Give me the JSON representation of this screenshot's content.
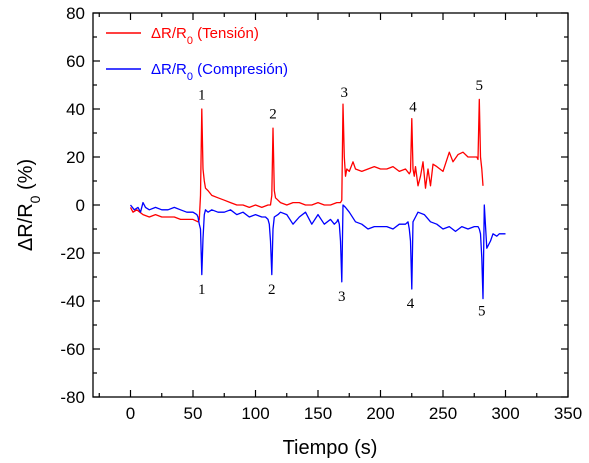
{
  "chart_data": {
    "type": "line",
    "title": "",
    "xlabel": "Tiempo (s)",
    "ylabel": {
      "main": "ΔR/R",
      "sub": "0",
      "unit": " (%)"
    },
    "xlim": [
      -30,
      350
    ],
    "ylim": [
      -80,
      80
    ],
    "xticks": [
      0,
      50,
      100,
      150,
      200,
      250,
      300,
      350
    ],
    "yticks": [
      -80,
      -60,
      -40,
      -20,
      0,
      20,
      40,
      60,
      80
    ],
    "grid": false,
    "legend_position": "top-left",
    "series": [
      {
        "name": {
          "main": "ΔR/R",
          "sub": "0",
          "suffix": " (Tensión)"
        },
        "color": "#ff0000",
        "x": [
          0,
          2,
          5,
          10,
          15,
          20,
          25,
          30,
          35,
          40,
          45,
          50,
          54,
          55,
          56,
          57,
          58,
          59,
          60,
          62,
          65,
          70,
          75,
          80,
          85,
          90,
          95,
          100,
          105,
          110,
          112,
          113,
          114,
          115,
          116,
          118,
          120,
          125,
          130,
          135,
          140,
          145,
          150,
          155,
          160,
          165,
          168,
          169,
          170,
          171,
          172,
          173,
          175,
          178,
          180,
          185,
          190,
          195,
          200,
          205,
          210,
          215,
          220,
          223,
          224,
          225,
          226,
          227,
          228,
          230,
          232,
          234,
          236,
          238,
          240,
          242,
          245,
          250,
          255,
          258,
          262,
          266,
          270,
          275,
          277,
          278,
          279,
          280,
          281,
          282
        ],
        "y": [
          -1,
          -3,
          -2,
          -4,
          -5,
          -4,
          -5,
          -5,
          -5,
          -6,
          -6,
          -6,
          -7,
          -6,
          4,
          40,
          15,
          10,
          7,
          6,
          4,
          3,
          2,
          1,
          0,
          0,
          -1,
          0,
          -1,
          0,
          0,
          4,
          32,
          6,
          3,
          2,
          1,
          0,
          1,
          1,
          0,
          0,
          1,
          0,
          0,
          1,
          1,
          2,
          42,
          20,
          12,
          15,
          14,
          18,
          15,
          14,
          15,
          16,
          15,
          15,
          16,
          14,
          15,
          13,
          14,
          36,
          15,
          12,
          16,
          8,
          12,
          18,
          7,
          15,
          8,
          17,
          16,
          14,
          22,
          18,
          21,
          22,
          20,
          20,
          20,
          19,
          44,
          20,
          15,
          8
        ]
      },
      {
        "name": {
          "main": "ΔR/R",
          "sub": "0",
          "suffix": " (Compresión)"
        },
        "color": "#0000ff",
        "x": [
          0,
          3,
          6,
          8,
          10,
          12,
          15,
          20,
          25,
          30,
          35,
          40,
          45,
          50,
          53,
          54,
          55,
          56,
          57,
          58,
          59,
          60,
          62,
          65,
          70,
          75,
          80,
          85,
          90,
          95,
          100,
          105,
          108,
          110,
          111,
          112,
          113,
          114,
          115,
          118,
          120,
          125,
          130,
          135,
          140,
          145,
          150,
          155,
          160,
          163,
          165,
          166,
          167,
          168,
          169,
          170,
          172,
          175,
          180,
          185,
          190,
          195,
          200,
          205,
          210,
          215,
          220,
          222,
          223,
          224,
          225,
          226,
          228,
          230,
          235,
          240,
          245,
          250,
          255,
          260,
          265,
          270,
          275,
          278,
          279,
          280,
          281,
          282,
          283,
          285,
          288,
          290,
          293,
          295,
          300
        ],
        "y": [
          0,
          -2,
          -1,
          -3,
          1,
          -1,
          -2,
          -1,
          -2,
          -2,
          -1,
          -2,
          -3,
          -3,
          -4,
          -5,
          -8,
          -10,
          -29,
          -14,
          -4,
          -2,
          -3,
          -2,
          -3,
          -3,
          -2,
          -4,
          -3,
          -5,
          -4,
          -5,
          -5,
          -6,
          -8,
          -15,
          -29,
          -10,
          -5,
          -4,
          -3,
          -4,
          -8,
          -5,
          -3,
          -8,
          -4,
          -8,
          -6,
          -8,
          -7,
          -6,
          -8,
          -15,
          -32,
          0,
          -1,
          -3,
          -7,
          -8,
          -10,
          -9,
          -9,
          -9,
          -10,
          -8,
          -8,
          -7,
          -10,
          -15,
          -35,
          -7,
          -5,
          -3,
          -4,
          -7,
          -8,
          -10,
          -9,
          -11,
          -9,
          -10,
          -9,
          -9,
          -10,
          -12,
          -22,
          -39,
          0,
          -18,
          -15,
          -12,
          -13,
          -12,
          -12
        ]
      }
    ],
    "annotations": {
      "tension_peaks": [
        {
          "label": "1",
          "x": 57,
          "y": 44
        },
        {
          "label": "2",
          "x": 114,
          "y": 36
        },
        {
          "label": "3",
          "x": 171,
          "y": 45
        },
        {
          "label": "4",
          "x": 226,
          "y": 39
        },
        {
          "label": "5",
          "x": 279,
          "y": 48
        }
      ],
      "compression_peaks": [
        {
          "label": "1",
          "x": 57,
          "y": -37
        },
        {
          "label": "2",
          "x": 113,
          "y": -37
        },
        {
          "label": "3",
          "x": 169,
          "y": -40
        },
        {
          "label": "4",
          "x": 224,
          "y": -43
        },
        {
          "label": "5",
          "x": 281,
          "y": -46
        }
      ]
    }
  }
}
